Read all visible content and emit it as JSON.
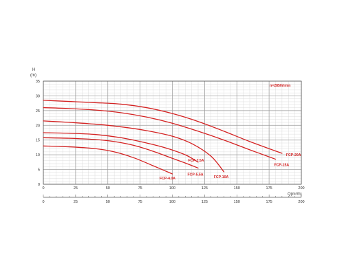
{
  "colors": {
    "curve": "#d42222",
    "grid_major": "#9a9a9a",
    "grid_minor": "#d4d4d4",
    "frame": "#555555",
    "text": "#333333"
  },
  "chart_data": {
    "type": "line",
    "title": "",
    "annotation": "n=2850r/min",
    "ylabel_top": "H",
    "ylabel_unit": "(m)",
    "xlabel": "Q(m³/h)",
    "xlim": [
      0,
      200
    ],
    "ylim": [
      0,
      35
    ],
    "xticks": [
      0,
      25,
      50,
      75,
      100,
      125,
      150,
      175,
      200
    ],
    "yticks": [
      0,
      5,
      10,
      15,
      20,
      25,
      30,
      35
    ],
    "x_minor_step": 5,
    "y_minor_step": 1,
    "grid": true,
    "secondary_x_axis_below": true,
    "series": [
      {
        "name": "FCP-20A",
        "x": [
          0,
          20,
          40,
          60,
          80,
          100,
          120,
          140,
          160,
          185
        ],
        "y": [
          28.5,
          28.1,
          27.7,
          27.2,
          26.0,
          24.0,
          21.3,
          18.0,
          14.5,
          10.5
        ]
      },
      {
        "name": "FCP-15A",
        "x": [
          0,
          20,
          40,
          60,
          80,
          100,
          120,
          140,
          160,
          180
        ],
        "y": [
          26.0,
          25.7,
          25.2,
          24.3,
          22.8,
          20.7,
          18.0,
          15.0,
          11.7,
          8.5
        ]
      },
      {
        "name": "FCP-10A",
        "x": [
          0,
          20,
          40,
          60,
          80,
          100,
          115,
          130,
          140
        ],
        "y": [
          21.5,
          21.0,
          20.4,
          19.5,
          18.2,
          16.3,
          13.8,
          9.5,
          4.2
        ]
      },
      {
        "name": "FCP-7.5A",
        "x": [
          0,
          20,
          40,
          60,
          80,
          95,
          110,
          120
        ],
        "y": [
          17.5,
          17.3,
          16.9,
          15.8,
          14.0,
          12.3,
          10.0,
          7.5
        ]
      },
      {
        "name": "FCP-5.5A",
        "x": [
          0,
          20,
          40,
          55,
          70,
          85,
          100,
          110,
          120
        ],
        "y": [
          15.8,
          15.6,
          15.2,
          14.5,
          13.2,
          11.2,
          8.8,
          7.2,
          5.5
        ]
      },
      {
        "name": "FCP-4.0A",
        "x": [
          0,
          20,
          40,
          55,
          70,
          85,
          100
        ],
        "y": [
          13.0,
          12.7,
          12.1,
          11.0,
          9.0,
          6.3,
          3.5
        ]
      }
    ]
  }
}
